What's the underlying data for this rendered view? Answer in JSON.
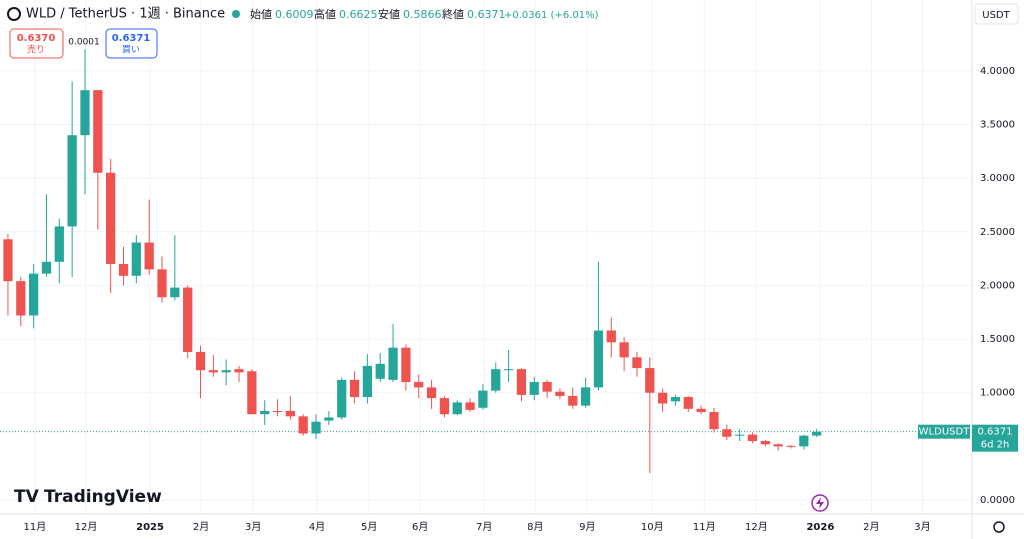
{
  "header": {
    "symbol": "WLD / TetherUS · 1週 · Binance",
    "open_label": "始値",
    "high_label": "高値",
    "low_label": "安値",
    "close_label": "終値",
    "change": "+0.0361 (+6.01%)",
    "currency": "USDT",
    "logo": "TradingView"
  },
  "trade": {
    "sell_price": "0.6370",
    "sell_label": "売り",
    "spread": "0.0001",
    "buy_price": "0.6371",
    "buy_label": "買い"
  },
  "price_tag": {
    "symbol": "WLDUSDT",
    "countdown": "6d 2h"
  },
  "chart_data": {
    "type": "candlestick",
    "up_color": "#26a69a",
    "down_color": "#ef5350",
    "grid": true,
    "open": [
      2.43,
      2.04,
      1.72,
      2.11,
      2.22,
      2.55,
      3.4,
      3.82,
      3.05,
      2.2,
      2.09,
      2.4,
      2.15,
      1.89,
      1.98,
      1.38,
      1.21,
      1.19,
      1.22,
      1.2,
      0.8,
      0.83,
      0.83,
      0.78,
      0.62,
      0.74,
      0.77,
      1.12,
      0.96,
      1.13,
      1.12,
      1.42,
      1.1,
      1.05,
      0.95,
      0.8,
      0.91,
      0.86,
      1.02,
      1.21,
      1.22,
      0.98,
      1.1,
      1.01,
      0.97,
      0.88,
      1.05,
      1.58,
      1.47,
      1.33,
      1.23,
      1.0,
      0.92,
      0.96,
      0.85,
      0.82,
      0.66,
      0.6,
      0.61,
      0.55,
      0.52,
      0.505,
      0.5,
      0.6009
    ],
    "high": [
      2.48,
      2.08,
      2.2,
      2.85,
      2.62,
      3.9,
      4.2,
      3.82,
      3.18,
      2.36,
      2.47,
      2.8,
      2.27,
      2.47,
      2.0,
      1.44,
      1.35,
      1.31,
      1.25,
      1.22,
      0.93,
      0.94,
      0.97,
      0.8,
      0.8,
      0.83,
      1.14,
      1.2,
      1.36,
      1.37,
      1.64,
      1.45,
      1.17,
      1.12,
      0.97,
      0.93,
      0.95,
      1.08,
      1.28,
      1.4,
      1.23,
      1.15,
      1.12,
      1.04,
      1.05,
      1.14,
      2.22,
      1.7,
      1.52,
      1.38,
      1.33,
      1.04,
      0.98,
      0.97,
      0.88,
      0.86,
      0.7,
      0.66,
      0.63,
      0.56,
      0.53,
      0.51,
      0.61,
      0.6625
    ],
    "low": [
      1.72,
      1.62,
      1.6,
      2.08,
      2.02,
      2.08,
      2.85,
      2.52,
      1.93,
      2.0,
      2.02,
      2.1,
      1.84,
      1.86,
      1.32,
      0.95,
      1.15,
      1.07,
      1.1,
      0.8,
      0.7,
      0.78,
      0.75,
      0.6,
      0.57,
      0.7,
      0.75,
      0.9,
      0.9,
      1.1,
      1.1,
      1.02,
      0.95,
      0.85,
      0.77,
      0.79,
      0.82,
      0.84,
      1.0,
      1.1,
      0.92,
      0.93,
      0.95,
      0.94,
      0.85,
      0.86,
      1.02,
      1.33,
      1.2,
      1.15,
      0.25,
      0.82,
      0.88,
      0.82,
      0.8,
      0.63,
      0.56,
      0.55,
      0.53,
      0.5,
      0.46,
      0.48,
      0.47,
      0.5866
    ],
    "close": [
      2.04,
      1.72,
      2.11,
      2.22,
      2.55,
      3.4,
      3.82,
      3.05,
      2.2,
      2.09,
      2.4,
      2.15,
      1.89,
      1.98,
      1.38,
      1.21,
      1.19,
      1.21,
      1.19,
      0.8,
      0.83,
      0.82,
      0.78,
      0.62,
      0.73,
      0.77,
      1.12,
      0.96,
      1.25,
      1.27,
      1.42,
      1.1,
      1.05,
      0.95,
      0.8,
      0.91,
      0.84,
      1.02,
      1.22,
      1.22,
      0.98,
      1.1,
      1.01,
      0.97,
      0.88,
      1.05,
      1.58,
      1.47,
      1.33,
      1.23,
      1.0,
      0.9,
      0.96,
      0.85,
      0.82,
      0.66,
      0.59,
      0.61,
      0.55,
      0.52,
      0.5,
      0.5,
      0.6,
      0.6371
    ],
    "xlim": [
      -0.62,
      75.1
    ],
    "xticks": [
      {
        "value": 2.1,
        "label": "11月"
      },
      {
        "value": 6.08,
        "label": "12月"
      },
      {
        "value": 11.07,
        "label": "2025"
      },
      {
        "value": 15.04,
        "label": "2月"
      },
      {
        "value": 19.1,
        "label": "3月"
      },
      {
        "value": 24.08,
        "label": "4月"
      },
      {
        "value": 28.14,
        "label": "5月"
      },
      {
        "value": 32.11,
        "label": "6月"
      },
      {
        "value": 37.1,
        "label": "7月"
      },
      {
        "value": 41.08,
        "label": "8月"
      },
      {
        "value": 45.13,
        "label": "9月"
      },
      {
        "value": 50.19,
        "label": "10月"
      },
      {
        "value": 54.24,
        "label": "11月"
      },
      {
        "value": 58.3,
        "label": "12月"
      },
      {
        "value": 63.29,
        "label": "2026"
      },
      {
        "value": 67.26,
        "label": "2月"
      },
      {
        "value": 71.24,
        "label": "3月"
      }
    ],
    "ylim": [
      -0.13,
      4.66
    ],
    "yticks": [
      {
        "value": 0,
        "label": "0.0000"
      },
      {
        "value": 1,
        "label": "1.0000"
      },
      {
        "value": 1.5,
        "label": "1.5000"
      },
      {
        "value": 2,
        "label": "2.0000"
      },
      {
        "value": 2.5,
        "label": "2.5000"
      },
      {
        "value": 3,
        "label": "3.0000"
      },
      {
        "value": 3.5,
        "label": "3.5000"
      },
      {
        "value": 4,
        "label": "4.0000"
      }
    ]
  }
}
